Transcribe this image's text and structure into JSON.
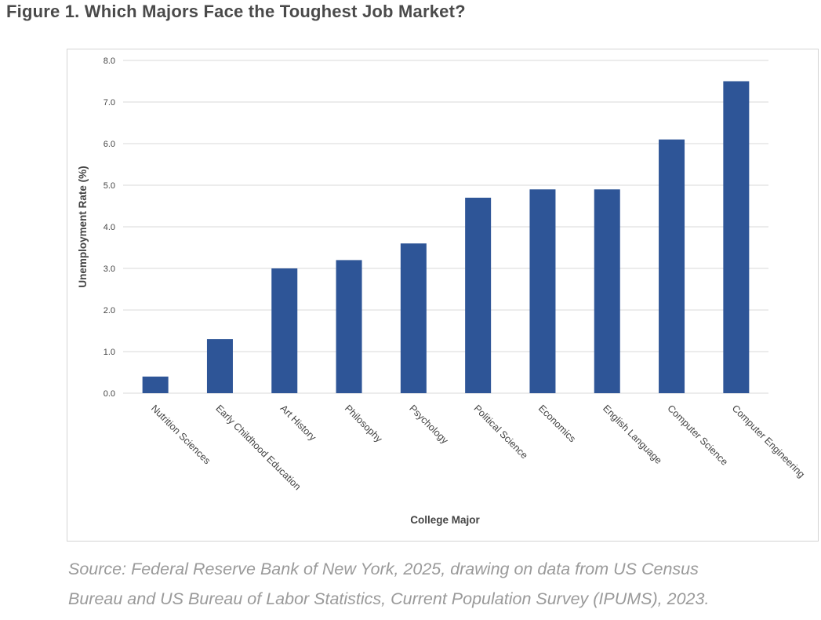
{
  "figure_title": "Figure 1. Which Majors Face the Toughest Job Market?",
  "source_lines": [
    "Source: Federal Reserve Bank of New York, 2025, drawing on data from US Census",
    "Bureau and US Bureau of Labor Statistics, Current Population Survey (IPUMS), 2023."
  ],
  "colors": {
    "bar": "#2e5597",
    "grid": "#d9d9d9",
    "text": "#444444"
  },
  "chart_data": {
    "type": "bar",
    "categories": [
      "Nutrition Sciences",
      "Early Childhood Education",
      "Art History",
      "Philosophy",
      "Psychology",
      "Political Science",
      "Economics",
      "English Language",
      "Computer Science",
      "Computer Engineering"
    ],
    "values": [
      0.4,
      1.3,
      3.0,
      3.2,
      3.6,
      4.7,
      4.9,
      4.9,
      6.1,
      7.5
    ],
    "xlabel": "College Major",
    "ylabel": "Unemployment Rate (%)",
    "ylim": [
      0,
      8
    ],
    "yticks": [
      "0.0",
      "1.0",
      "2.0",
      "3.0",
      "4.0",
      "5.0",
      "6.0",
      "7.0",
      "8.0"
    ],
    "grid": true,
    "legend": "none"
  }
}
